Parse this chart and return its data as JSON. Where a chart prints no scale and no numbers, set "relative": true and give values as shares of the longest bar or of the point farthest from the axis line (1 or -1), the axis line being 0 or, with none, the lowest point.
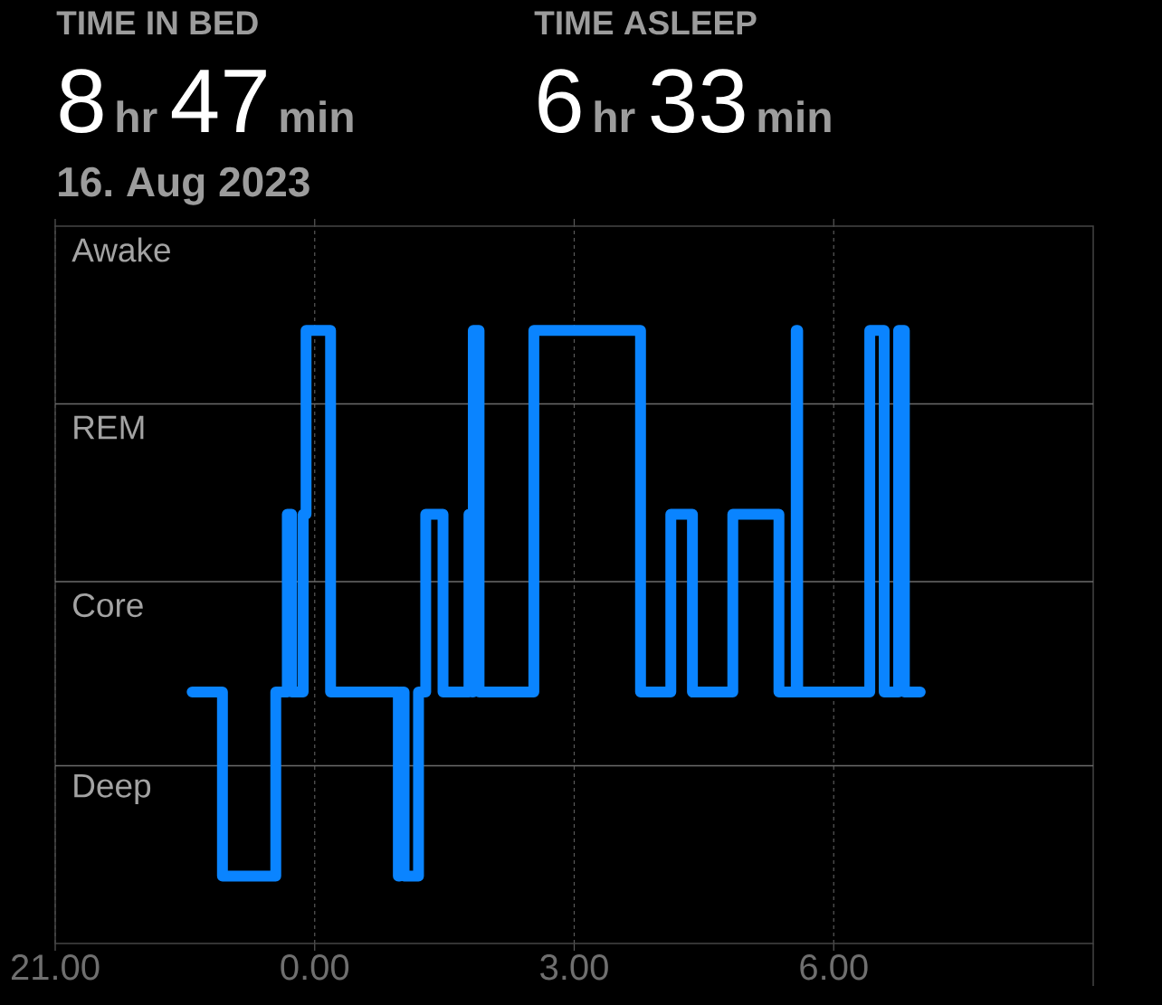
{
  "chart_data": {
    "type": "step",
    "relative": true,
    "annotations": [
      "TIME IN BED",
      "8",
      "hr",
      "47",
      "min",
      "TIME ASLEEP",
      "6",
      "hr",
      "33",
      "min",
      "16. Aug 2023",
      "Awake",
      "REM",
      "Core",
      "Deep"
    ],
    "xlim": [
      "2023-08-15T21:00",
      "2023-08-16T09:00"
    ],
    "xticks": [
      {
        "value": "2023-08-15T21:00",
        "label": "21.00"
      },
      {
        "value": "2023-08-16T00:00",
        "label": "0.00"
      },
      {
        "value": "2023-08-16T03:00",
        "label": "3.00"
      },
      {
        "value": "2023-08-16T06:00",
        "label": "6.00"
      }
    ],
    "grid": "x",
    "ref_lines": [
      {
        "axis": "y",
        "value": 0.29,
        "color": "#6b6b6b"
      },
      {
        "axis": "y",
        "value": 0.59,
        "color": "#6b6b6b"
      },
      {
        "axis": "y",
        "value": 0.88,
        "color": "#6b6b6b"
      }
    ],
    "series": [
      {
        "color": "#0a84ff",
        "x": [
          "2023-08-15T22:35",
          "2023-08-15T22:56",
          "2023-08-15T23:33",
          "2023-08-15T23:41",
          "2023-08-15T23:44",
          "2023-08-15T23:52",
          "2023-08-15T23:54",
          "2023-08-16T00:11",
          "2023-08-16T00:58",
          "2023-08-16T00:59",
          "2023-08-16T01:02",
          "2023-08-16T01:12",
          "2023-08-16T01:17",
          "2023-08-16T01:29",
          "2023-08-16T01:47",
          "2023-08-16T01:49",
          "2023-08-16T01:50",
          "2023-08-16T01:54",
          "2023-08-16T02:32",
          "2023-08-16T03:46",
          "2023-08-16T04:07",
          "2023-08-16T04:22",
          "2023-08-16T04:50",
          "2023-08-16T05:22",
          "2023-08-16T05:34",
          "2023-08-16T05:35",
          "2023-08-16T06:25",
          "2023-08-16T06:35",
          "2023-08-16T06:45",
          "2023-08-16T06:49",
          "2023-08-16T07:00"
        ],
        "values": [
          0.41,
          0.11,
          0.41,
          0.7,
          0.41,
          0.7,
          1,
          0.41,
          0.11,
          0.41,
          0.11,
          0.41,
          0.7,
          0.41,
          0.7,
          0.41,
          1,
          0.41,
          1,
          0.41,
          0.7,
          0.41,
          0.7,
          0.41,
          1,
          0.41,
          1,
          0.41,
          1,
          0.41,
          0.41
        ]
      }
    ]
  }
}
